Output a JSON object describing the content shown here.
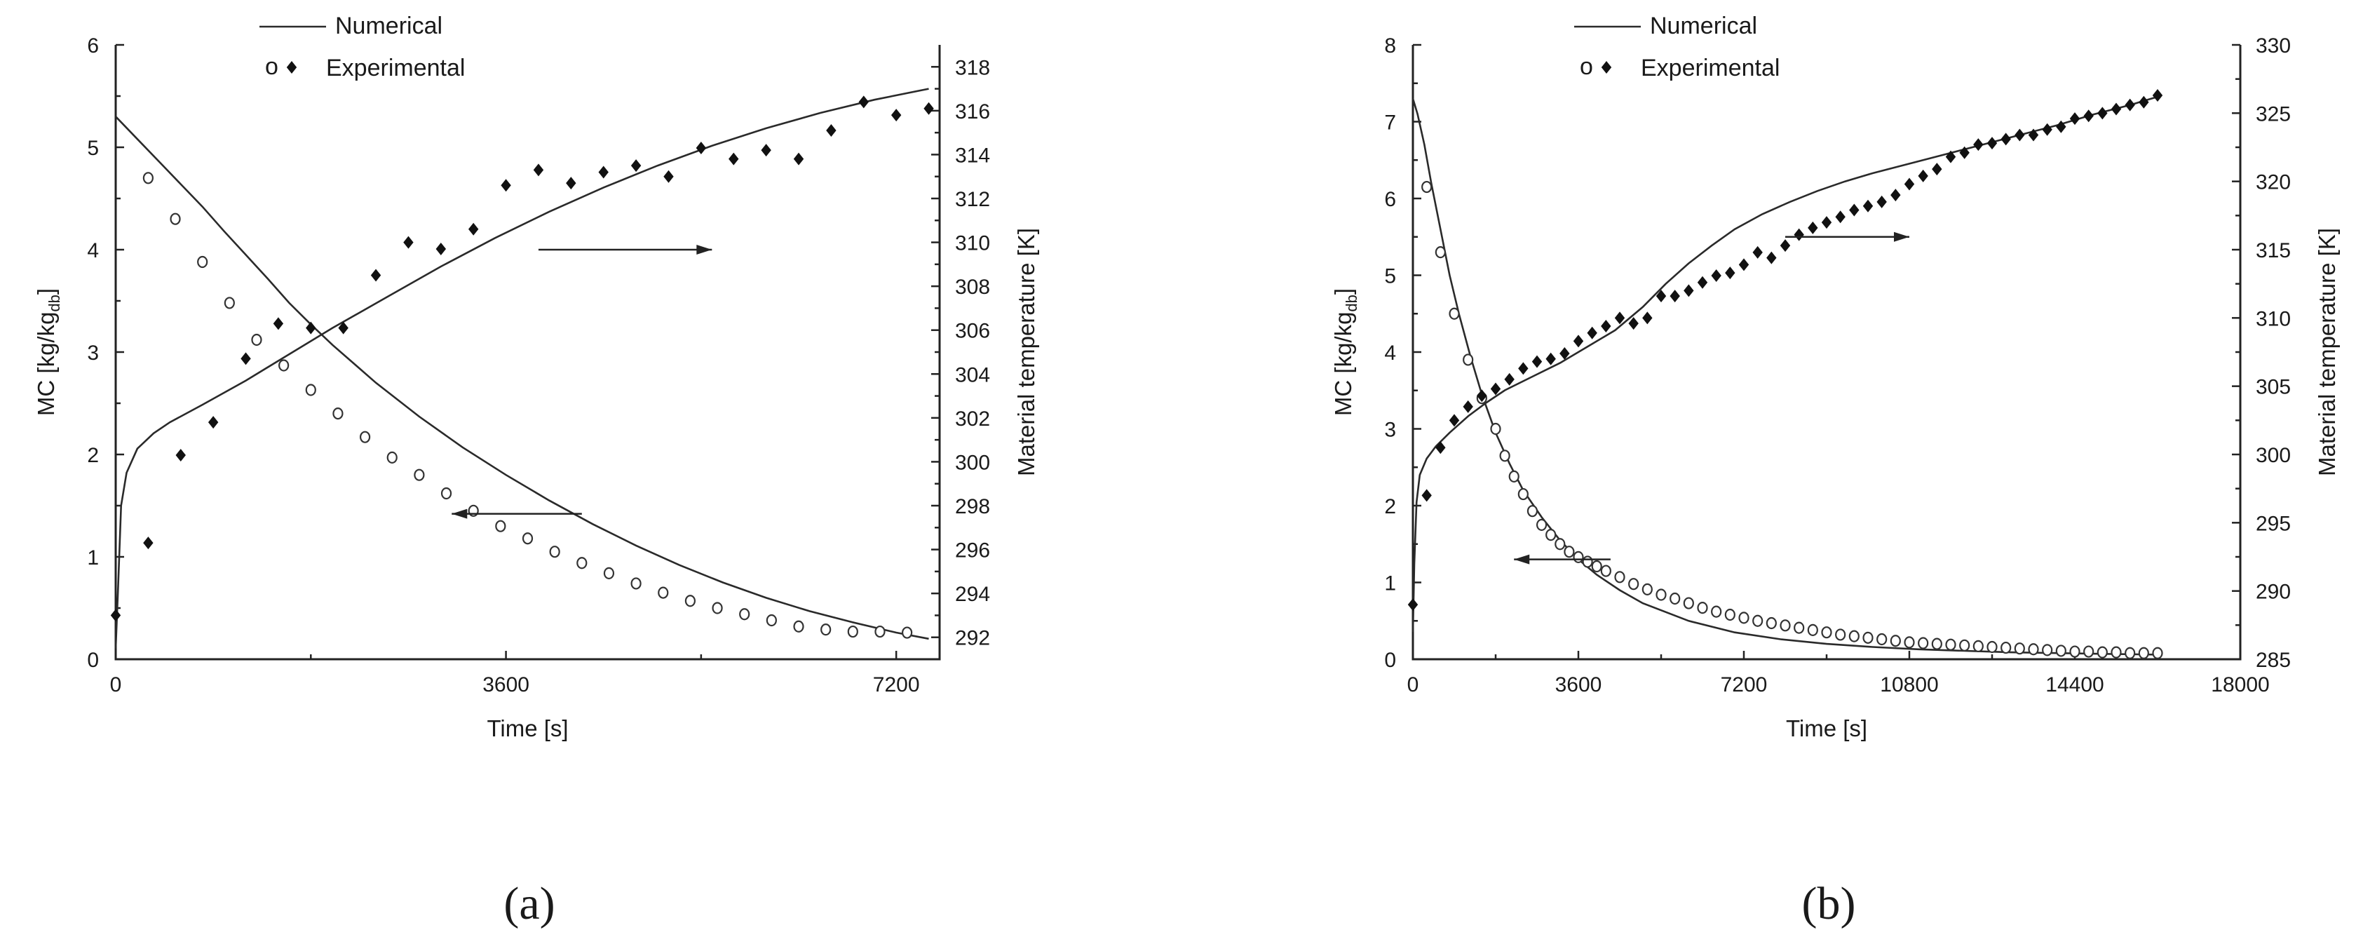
{
  "chart_data": [
    {
      "type": "scatter",
      "panel_label": "(a)",
      "xlabel": "Time [s]",
      "ylabel_left": "MC [kg/kg",
      "ylabel_left_sub": "db",
      "ylabel_left_end": "]",
      "ylabel_right": "Material temperature [K]",
      "xlim": [
        0,
        7600
      ],
      "ylim_left": [
        0,
        6
      ],
      "ylim_right": [
        291,
        319
      ],
      "x_ticks": [
        0,
        3600,
        7200
      ],
      "x_tick_labels": [
        "0",
        "3600",
        "7200"
      ],
      "y_left_ticks": [
        0,
        1,
        2,
        3,
        4,
        5,
        6
      ],
      "y_left_tick_labels": [
        "0",
        "1",
        "2",
        "3",
        "4",
        "5",
        "6"
      ],
      "y_right_ticks": [
        292,
        294,
        296,
        298,
        300,
        302,
        304,
        306,
        308,
        310,
        312,
        314,
        316,
        318
      ],
      "y_right_tick_labels": [
        "292",
        "294",
        "296",
        "298",
        "300",
        "302",
        "304",
        "306",
        "308",
        "310",
        "312",
        "314",
        "316",
        "318"
      ],
      "legend": {
        "numerical": "Numerical",
        "experimental": "Experimental",
        "open_marker_glyph": "o",
        "position": "top-center"
      },
      "arrows": [
        {
          "direction": "right",
          "axis": "right",
          "x_start": 3900,
          "x_end": 5500,
          "y": 4.0
        },
        {
          "direction": "left",
          "axis": "left",
          "x_start": 4300,
          "x_end": 3100,
          "y": 1.42
        }
      ],
      "series": [
        {
          "name": "MC numerical",
          "axis": "left",
          "style": "line",
          "x": [
            0,
            200,
            400,
            600,
            800,
            1000,
            1200,
            1400,
            1600,
            1800,
            2000,
            2400,
            2800,
            3200,
            3600,
            4000,
            4400,
            4800,
            5200,
            5600,
            6000,
            6400,
            6800,
            7200,
            7500
          ],
          "y": [
            5.3,
            5.08,
            4.86,
            4.64,
            4.42,
            4.18,
            3.95,
            3.72,
            3.48,
            3.27,
            3.07,
            2.7,
            2.37,
            2.07,
            1.8,
            1.55,
            1.32,
            1.11,
            0.92,
            0.75,
            0.6,
            0.47,
            0.36,
            0.26,
            0.2
          ]
        },
        {
          "name": "MC experimental",
          "axis": "left",
          "style": "open",
          "x": [
            300,
            550,
            800,
            1050,
            1300,
            1550,
            1800,
            2050,
            2300,
            2550,
            2800,
            3050,
            3300,
            3550,
            3800,
            4050,
            4300,
            4550,
            4800,
            5050,
            5300,
            5550,
            5800,
            6050,
            6300,
            6550,
            6800,
            7050,
            7300
          ],
          "y": [
            4.7,
            4.3,
            3.88,
            3.48,
            3.12,
            2.87,
            2.63,
            2.4,
            2.17,
            1.97,
            1.8,
            1.62,
            1.45,
            1.3,
            1.18,
            1.05,
            0.94,
            0.84,
            0.74,
            0.65,
            0.57,
            0.5,
            0.44,
            0.38,
            0.32,
            0.29,
            0.27,
            0.27,
            0.26
          ]
        },
        {
          "name": "Temperature numerical",
          "axis": "right",
          "style": "line",
          "x": [
            0,
            20,
            50,
            100,
            200,
            350,
            500,
            800,
            1200,
            1600,
            2000,
            2500,
            3000,
            3500,
            4000,
            4500,
            5000,
            5500,
            6000,
            6500,
            7000,
            7500
          ],
          "y": [
            291.5,
            294,
            298,
            299.5,
            300.6,
            301.3,
            301.8,
            302.6,
            303.7,
            304.9,
            306.1,
            307.5,
            308.9,
            310.2,
            311.4,
            312.5,
            313.5,
            314.4,
            315.2,
            315.9,
            316.5,
            317.0
          ]
        },
        {
          "name": "Temperature experimental",
          "axis": "right",
          "style": "filled",
          "x": [
            0,
            300,
            600,
            900,
            1200,
            1500,
            1800,
            2100,
            2400,
            2700,
            3000,
            3300,
            3600,
            3900,
            4200,
            4500,
            4800,
            5100,
            5400,
            5700,
            6000,
            6300,
            6600,
            6900,
            7200,
            7500
          ],
          "y": [
            293,
            296.3,
            300.3,
            301.8,
            304.7,
            306.3,
            306.1,
            306.1,
            308.5,
            310.0,
            309.7,
            310.6,
            312.6,
            313.3,
            312.7,
            313.2,
            313.5,
            313.0,
            314.3,
            313.8,
            314.2,
            313.8,
            315.1,
            316.4,
            315.8,
            316.1
          ]
        }
      ]
    },
    {
      "type": "scatter",
      "panel_label": "(b)",
      "xlabel": "Time [s]",
      "ylabel_left": "MC [kg/kg",
      "ylabel_left_sub": "db",
      "ylabel_left_end": "]",
      "ylabel_right": "Material temperature [K]",
      "xlim": [
        0,
        18000
      ],
      "ylim_left": [
        0,
        8
      ],
      "ylim_right": [
        285,
        330
      ],
      "x_ticks": [
        0,
        3600,
        7200,
        10800,
        14400,
        18000
      ],
      "x_tick_labels": [
        "0",
        "3600",
        "7200",
        "10800",
        "14400",
        "18000"
      ],
      "y_left_ticks": [
        0,
        1,
        2,
        3,
        4,
        5,
        6,
        7,
        8
      ],
      "y_left_tick_labels": [
        "0",
        "1",
        "2",
        "3",
        "4",
        "5",
        "6",
        "7",
        "8"
      ],
      "y_right_ticks": [
        285,
        290,
        295,
        300,
        305,
        310,
        315,
        320,
        325,
        330
      ],
      "y_right_tick_labels": [
        "285",
        "290",
        "295",
        "300",
        "305",
        "310",
        "315",
        "320",
        "325",
        "330"
      ],
      "legend": {
        "numerical": "Numerical",
        "experimental": "Experimental",
        "open_marker_glyph": "o",
        "position": "top-center"
      },
      "arrows": [
        {
          "direction": "right",
          "axis": "right",
          "x_start": 8100,
          "x_end": 10800,
          "y": 5.5
        },
        {
          "direction": "left",
          "axis": "left",
          "x_start": 4300,
          "x_end": 2200,
          "y": 1.3
        }
      ],
      "series": [
        {
          "name": "MC numerical",
          "axis": "left",
          "style": "line",
          "x": [
            0,
            100,
            250,
            400,
            600,
            800,
            1000,
            1250,
            1500,
            1800,
            2100,
            2400,
            2800,
            3200,
            3600,
            4000,
            4500,
            5000,
            6000,
            7000,
            8000,
            9000,
            10000,
            11000,
            12000,
            13000,
            14000,
            15000,
            16200
          ],
          "y": [
            7.3,
            7.1,
            6.7,
            6.2,
            5.6,
            5.0,
            4.5,
            3.95,
            3.45,
            2.95,
            2.55,
            2.2,
            1.85,
            1.55,
            1.3,
            1.1,
            0.9,
            0.73,
            0.5,
            0.35,
            0.26,
            0.2,
            0.16,
            0.13,
            0.11,
            0.09,
            0.08,
            0.07,
            0.06
          ]
        },
        {
          "name": "MC experimental",
          "axis": "left",
          "style": "open",
          "x": [
            300,
            600,
            900,
            1200,
            1500,
            1800,
            2000,
            2200,
            2400,
            2600,
            2800,
            3000,
            3200,
            3400,
            3600,
            3800,
            4000,
            4200,
            4500,
            4800,
            5100,
            5400,
            5700,
            6000,
            6300,
            6600,
            6900,
            7200,
            7500,
            7800,
            8100,
            8400,
            8700,
            9000,
            9300,
            9600,
            9900,
            10200,
            10500,
            10800,
            11100,
            11400,
            11700,
            12000,
            12300,
            12600,
            12900,
            13200,
            13500,
            13800,
            14100,
            14400,
            14700,
            15000,
            15300,
            15600,
            15900,
            16200
          ],
          "y": [
            6.15,
            5.3,
            4.5,
            3.9,
            3.4,
            3.0,
            2.65,
            2.38,
            2.15,
            1.93,
            1.75,
            1.62,
            1.5,
            1.4,
            1.33,
            1.27,
            1.21,
            1.15,
            1.07,
            0.98,
            0.91,
            0.84,
            0.79,
            0.73,
            0.67,
            0.62,
            0.58,
            0.54,
            0.5,
            0.47,
            0.44,
            0.41,
            0.38,
            0.35,
            0.32,
            0.3,
            0.28,
            0.26,
            0.24,
            0.22,
            0.21,
            0.2,
            0.19,
            0.18,
            0.17,
            0.16,
            0.15,
            0.14,
            0.13,
            0.12,
            0.11,
            0.1,
            0.1,
            0.09,
            0.09,
            0.08,
            0.08,
            0.08
          ]
        },
        {
          "name": "Temperature numerical",
          "axis": "right",
          "style": "line",
          "x": [
            0,
            30,
            80,
            150,
            300,
            500,
            800,
            1200,
            1600,
            2000,
            2600,
            3200,
            3800,
            4400,
            5000,
            5500,
            6000,
            6500,
            7000,
            7600,
            8200,
            8800,
            9400,
            10000,
            10800,
            11600,
            12400,
            13200,
            14000,
            14800,
            15600,
            16200
          ],
          "y": [
            287,
            292,
            296.5,
            298.5,
            299.7,
            300.6,
            301.6,
            302.8,
            303.8,
            304.7,
            305.7,
            306.7,
            307.9,
            309.1,
            310.8,
            312.5,
            314.0,
            315.3,
            316.5,
            317.6,
            318.5,
            319.3,
            320.0,
            320.6,
            321.3,
            322.0,
            322.7,
            323.4,
            324.1,
            324.9,
            325.6,
            326.2
          ]
        },
        {
          "name": "Temperature experimental",
          "axis": "right",
          "style": "filled",
          "x": [
            0,
            300,
            600,
            900,
            1200,
            1500,
            1800,
            2100,
            2400,
            2700,
            3000,
            3300,
            3600,
            3900,
            4200,
            4500,
            4800,
            5100,
            5400,
            5700,
            6000,
            6300,
            6600,
            6900,
            7200,
            7500,
            7800,
            8100,
            8400,
            8700,
            9000,
            9300,
            9600,
            9900,
            10200,
            10500,
            10800,
            11100,
            11400,
            11700,
            12000,
            12300,
            12600,
            12900,
            13200,
            13500,
            13800,
            14100,
            14400,
            14700,
            15000,
            15300,
            15600,
            15900,
            16200
          ],
          "y": [
            289,
            297,
            300.5,
            302.5,
            303.5,
            304.3,
            304.8,
            305.5,
            306.3,
            306.8,
            307.0,
            307.4,
            308.3,
            308.9,
            309.4,
            310.0,
            309.6,
            310.0,
            311.6,
            311.6,
            312.0,
            312.6,
            313.1,
            313.3,
            313.9,
            314.8,
            314.4,
            315.3,
            316.1,
            316.6,
            317.0,
            317.4,
            317.9,
            318.2,
            318.5,
            319.0,
            319.8,
            320.4,
            320.9,
            321.8,
            322.1,
            322.7,
            322.8,
            323.1,
            323.4,
            323.4,
            323.8,
            324.0,
            324.6,
            324.8,
            325.0,
            325.3,
            325.6,
            325.8,
            326.3
          ]
        }
      ]
    }
  ]
}
